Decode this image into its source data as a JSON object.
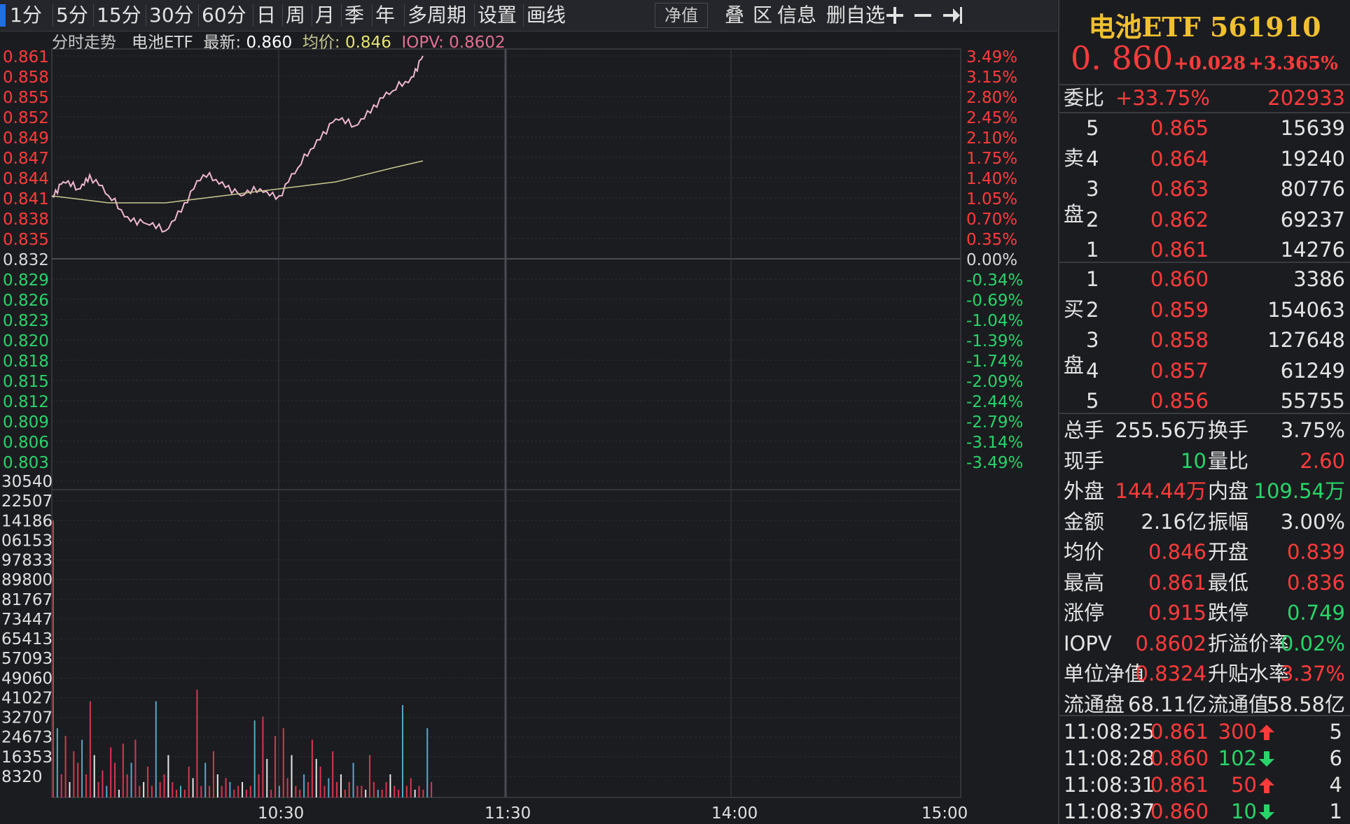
{
  "toolbar": {
    "periods": [
      "1分",
      "5分",
      "15分",
      "30分",
      "60分",
      "日",
      "周",
      "月",
      "季",
      "年",
      "多周期",
      "设置",
      "画线"
    ],
    "net_value": "净值",
    "right_items": [
      "叠",
      "区",
      "信息",
      "删自选"
    ],
    "icons": [
      "plus-icon",
      "minus-icon",
      "collapse-right-icon"
    ],
    "selected_color": "#1f6fe5"
  },
  "chart": {
    "info": {
      "label": "分时走势",
      "name": "电池ETF",
      "latest_label": "最新:",
      "latest": "0.860",
      "avg_label": "均价:",
      "avg": "0.846",
      "iopv_label": "IOPV:",
      "iopv": "0.8602"
    },
    "price_ticks": [
      "0.861",
      "0.858",
      "0.855",
      "0.852",
      "0.849",
      "0.847",
      "0.844",
      "0.841",
      "0.838",
      "0.835",
      "0.832",
      "0.829",
      "0.826",
      "0.823",
      "0.820",
      "0.818",
      "0.815",
      "0.812",
      "0.809",
      "0.806",
      "0.803"
    ],
    "pct_ticks": [
      "3.49%",
      "3.15%",
      "2.80%",
      "2.45%",
      "2.10%",
      "1.75%",
      "1.40%",
      "1.05%",
      "0.70%",
      "0.35%",
      "0.00%",
      "-0.34%",
      "-0.69%",
      "-1.04%",
      "-1.39%",
      "-1.74%",
      "-2.09%",
      "-2.44%",
      "-2.79%",
      "-3.14%",
      "-3.49%"
    ],
    "volume_ticks": [
      "30540",
      "22507",
      "14186",
      "06153",
      "97833",
      "89800",
      "81767",
      "73447",
      "65413",
      "57093",
      "49060",
      "41027",
      "32707",
      "24673",
      "16353",
      "8320"
    ],
    "time_labels": [
      "10:30",
      "11:30",
      "14:00",
      "15:00"
    ],
    "colors": {
      "up": "#ff3b3b",
      "down": "#29d46a",
      "price_line": "#f0b8d0",
      "avg_line": "#c8c890",
      "grid": "#2c2d33"
    }
  },
  "chart_data": {
    "type": "line",
    "title": "分时走势",
    "x_range": [
      "9:30",
      "15:00"
    ],
    "ylim": [
      0.803,
      0.861
    ],
    "prev_close": 0.832,
    "series": [
      {
        "name": "电池ETF",
        "x": [
          "09:30",
          "09:33",
          "09:37",
          "09:40",
          "09:45",
          "09:50",
          "09:55",
          "10:00",
          "10:05",
          "10:10",
          "10:15",
          "10:20",
          "10:25",
          "10:30",
          "10:35",
          "10:40",
          "10:45",
          "10:50",
          "10:55",
          "11:00",
          "11:05",
          "11:08"
        ],
        "values": [
          0.841,
          0.843,
          0.842,
          0.844,
          0.841,
          0.838,
          0.837,
          0.836,
          0.84,
          0.844,
          0.843,
          0.841,
          0.842,
          0.841,
          0.845,
          0.849,
          0.852,
          0.851,
          0.854,
          0.856,
          0.858,
          0.861
        ]
      },
      {
        "name": "均价",
        "x": [
          "09:30",
          "09:45",
          "10:00",
          "10:15",
          "10:30",
          "10:45",
          "11:00",
          "11:08"
        ],
        "values": [
          0.841,
          0.84,
          0.84,
          0.841,
          0.842,
          0.843,
          0.845,
          0.846
        ]
      }
    ]
  },
  "panel": {
    "title": "电池ETF 561910",
    "price": "0. 860",
    "change": "+0.028",
    "change_pct": "+3.365%",
    "weibi_label": "委比",
    "weibi": "+33.75%",
    "weibi_vol": "202933",
    "sell_label": [
      "卖",
      "盘"
    ],
    "buy_label": [
      "买",
      "盘"
    ],
    "asks": [
      {
        "lvl": "5",
        "price": "0.865",
        "vol": "15639"
      },
      {
        "lvl": "4",
        "price": "0.864",
        "vol": "19240"
      },
      {
        "lvl": "3",
        "price": "0.863",
        "vol": "80776"
      },
      {
        "lvl": "2",
        "price": "0.862",
        "vol": "69237"
      },
      {
        "lvl": "1",
        "price": "0.861",
        "vol": "14276"
      }
    ],
    "bids": [
      {
        "lvl": "1",
        "price": "0.860",
        "vol": "3386"
      },
      {
        "lvl": "2",
        "price": "0.859",
        "vol": "154063"
      },
      {
        "lvl": "3",
        "price": "0.858",
        "vol": "127648"
      },
      {
        "lvl": "4",
        "price": "0.857",
        "vol": "61249"
      },
      {
        "lvl": "5",
        "price": "0.856",
        "vol": "55755"
      }
    ],
    "stats": [
      {
        "l1": "总手",
        "v1": "255.56万",
        "c1": "wht",
        "l2": "换手",
        "v2": "3.75%",
        "c2": "wht"
      },
      {
        "l1": "现手",
        "v1": "10",
        "c1": "grn",
        "l2": "量比",
        "v2": "2.60",
        "c2": "red"
      },
      {
        "l1": "外盘",
        "v1": "144.44万",
        "c1": "red",
        "l2": "内盘",
        "v2": "109.54万",
        "c2": "grn"
      },
      {
        "l1": "金额",
        "v1": "2.16亿",
        "c1": "wht",
        "l2": "振幅",
        "v2": "3.00%",
        "c2": "wht"
      },
      {
        "l1": "均价",
        "v1": "0.846",
        "c1": "red",
        "l2": "开盘",
        "v2": "0.839",
        "c2": "red"
      },
      {
        "l1": "最高",
        "v1": "0.861",
        "c1": "red",
        "l2": "最低",
        "v2": "0.836",
        "c2": "red"
      },
      {
        "l1": "涨停",
        "v1": "0.915",
        "c1": "red",
        "l2": "跌停",
        "v2": "0.749",
        "c2": "grn"
      },
      {
        "l1": "IOPV",
        "v1": "0.8602",
        "c1": "red",
        "l2": "折溢价率",
        "v2": "0.02%",
        "c2": "grn"
      },
      {
        "l1": "单位净值",
        "v1": "0.8324",
        "c1": "red",
        "l2": "升贴水率",
        "v2": "3.37%",
        "c2": "red"
      },
      {
        "l1": "流通盘",
        "v1": "68.11亿",
        "c1": "wht",
        "l2": "流通值",
        "v2": "58.58亿",
        "c2": "wht"
      }
    ],
    "ticks": [
      {
        "time": "11:08:25",
        "price": "0.861",
        "pc": "red",
        "vol": "300",
        "dir": "up",
        "n": "5"
      },
      {
        "time": "11:08:28",
        "price": "0.860",
        "pc": "red",
        "vol": "102",
        "dir": "down",
        "n": "6"
      },
      {
        "time": "11:08:31",
        "price": "0.861",
        "pc": "red",
        "vol": "50",
        "dir": "up",
        "n": "4"
      },
      {
        "time": "11:08:37",
        "price": "0.860",
        "pc": "red",
        "vol": "10",
        "dir": "down",
        "n": "1"
      }
    ]
  }
}
